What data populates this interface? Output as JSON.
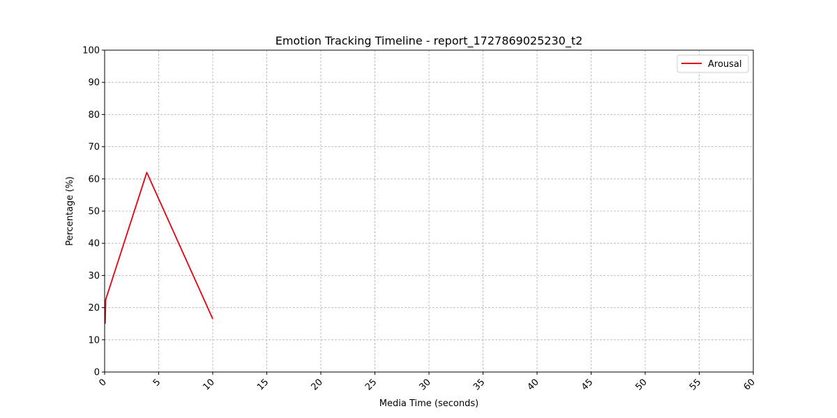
{
  "chart_data": {
    "type": "line",
    "title": "Emotion Tracking Timeline - report_1727869025230_t2",
    "xlabel": "Media Time (seconds)",
    "ylabel": "Percentage (%)",
    "xlim": [
      0,
      60
    ],
    "ylim": [
      0,
      100
    ],
    "x_ticks": [
      0,
      5,
      10,
      15,
      20,
      25,
      30,
      35,
      40,
      45,
      50,
      55,
      60
    ],
    "y_ticks": [
      0,
      10,
      20,
      30,
      40,
      50,
      60,
      70,
      80,
      90,
      100
    ],
    "x_tick_labels": [
      "0",
      "5",
      "10",
      "15",
      "20",
      "25",
      "30",
      "35",
      "40",
      "45",
      "50",
      "55",
      "60"
    ],
    "y_tick_labels": [
      "0",
      "10",
      "20",
      "30",
      "40",
      "50",
      "60",
      "70",
      "80",
      "90",
      "100"
    ],
    "x_tick_rotation": "45 degrees",
    "grid": true,
    "legend_position": "top-right",
    "series": [
      {
        "name": "Arousal",
        "color": "#e8000b",
        "x": [
          0.05,
          0.1,
          3.9,
          10.0
        ],
        "y": [
          15,
          22.5,
          62,
          16.5
        ]
      }
    ]
  }
}
